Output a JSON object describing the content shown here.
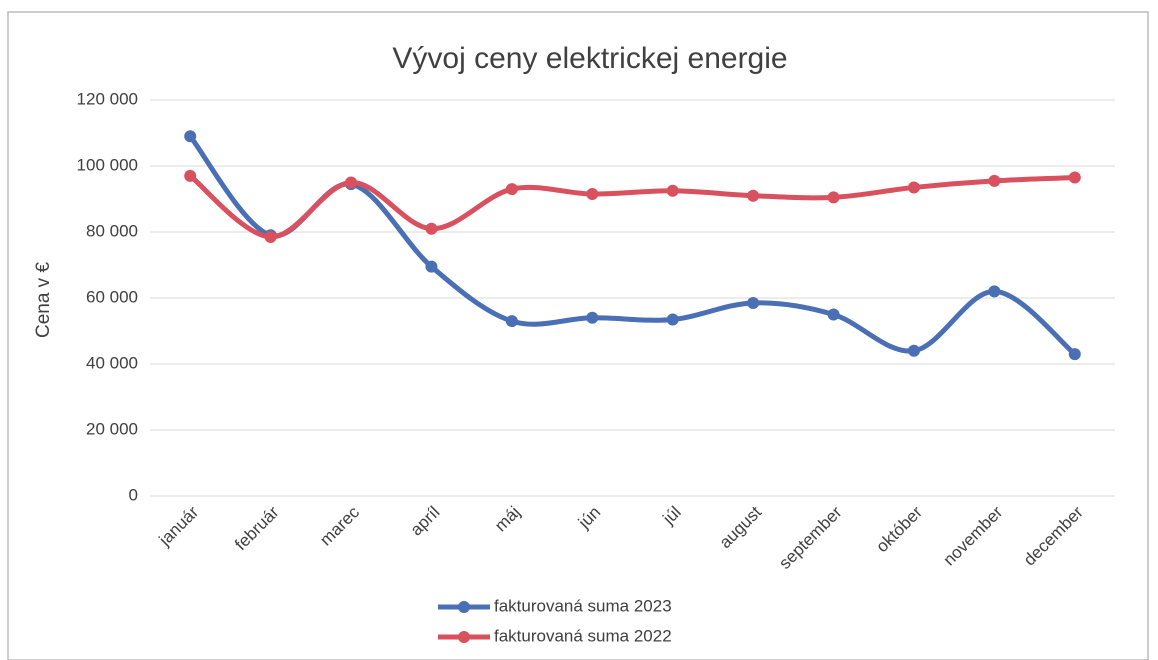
{
  "chart_data": {
    "type": "line",
    "title": "Vývoj ceny elektrickej energie",
    "y_label": "Cena v €",
    "categories": [
      "január",
      "február",
      "marec",
      "apríl",
      "máj",
      "jún",
      "júl",
      "august",
      "september",
      "október",
      "november",
      "december"
    ],
    "series": [
      {
        "name": "fakturovaná suma 2023",
        "color": "#4a6fb5",
        "values": [
          109000,
          79000,
          94500,
          69500,
          53000,
          54000,
          53500,
          58500,
          55000,
          44000,
          62000,
          43000
        ]
      },
      {
        "name": "fakturovaná suma 2022",
        "color": "#d9505e",
        "values": [
          97000,
          78500,
          95000,
          81000,
          93000,
          91500,
          92500,
          91000,
          90500,
          93500,
          95500,
          96500
        ]
      }
    ],
    "ylim": [
      0,
      120000
    ],
    "yticks": [
      0,
      {
        "value": 20000,
        "label": "20 000"
      },
      {
        "value": 40000,
        "label": "40 000"
      },
      {
        "value": 60000,
        "label": "60 000"
      },
      {
        "value": 80000,
        "label": "80 000"
      },
      {
        "value": 100000,
        "label": "100 000"
      },
      {
        "value": 120000,
        "label": "120 000"
      }
    ],
    "grid": true,
    "smooth": true,
    "legend": "bottom"
  }
}
